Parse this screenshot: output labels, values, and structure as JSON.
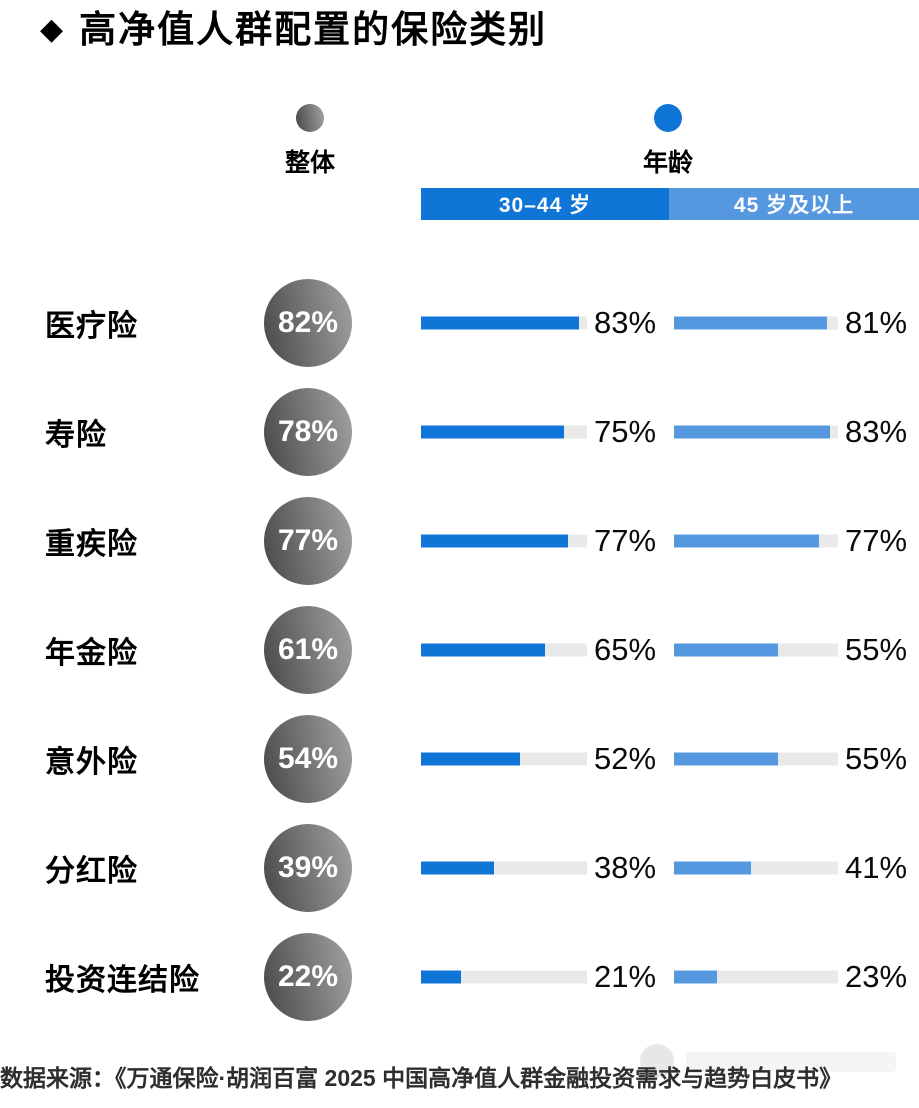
{
  "title": {
    "bullet": "◆",
    "text": "高净值人群配置的保险类别"
  },
  "legend": {
    "overall_label": "整体",
    "age_label": "年龄"
  },
  "chart_data": {
    "type": "bar",
    "title": "高净值人群配置的保险类别",
    "categories": [
      "医疗险",
      "寿险",
      "重疾险",
      "年金险",
      "意外险",
      "分红险",
      "投资连结险"
    ],
    "series": [
      {
        "name": "整体",
        "values": [
          82,
          78,
          77,
          61,
          54,
          39,
          22
        ]
      },
      {
        "name": "30–44 岁",
        "values": [
          83,
          75,
          77,
          65,
          52,
          38,
          21
        ]
      },
      {
        "name": "45 岁及以上",
        "values": [
          81,
          83,
          77,
          55,
          55,
          41,
          23
        ]
      }
    ],
    "age_group_headers": [
      "30–44 岁",
      "45 岁及以上"
    ],
    "unit": "%",
    "bar_scale_max": 87,
    "legend_position": "top",
    "grid": false
  },
  "colors": {
    "overall_gradient_start": "#474747",
    "overall_gradient_end": "#a3a3a3",
    "age_30_44": "#0f76d8",
    "age_45_plus": "#5598e0",
    "bar_track": "#e9e9e9",
    "title_text": "#000000",
    "source_text": "#2e2e2e"
  },
  "source": "数据来源：《万通保险·胡润百富 2025 中国高净值人群金融投资需求与趋势白皮书》"
}
